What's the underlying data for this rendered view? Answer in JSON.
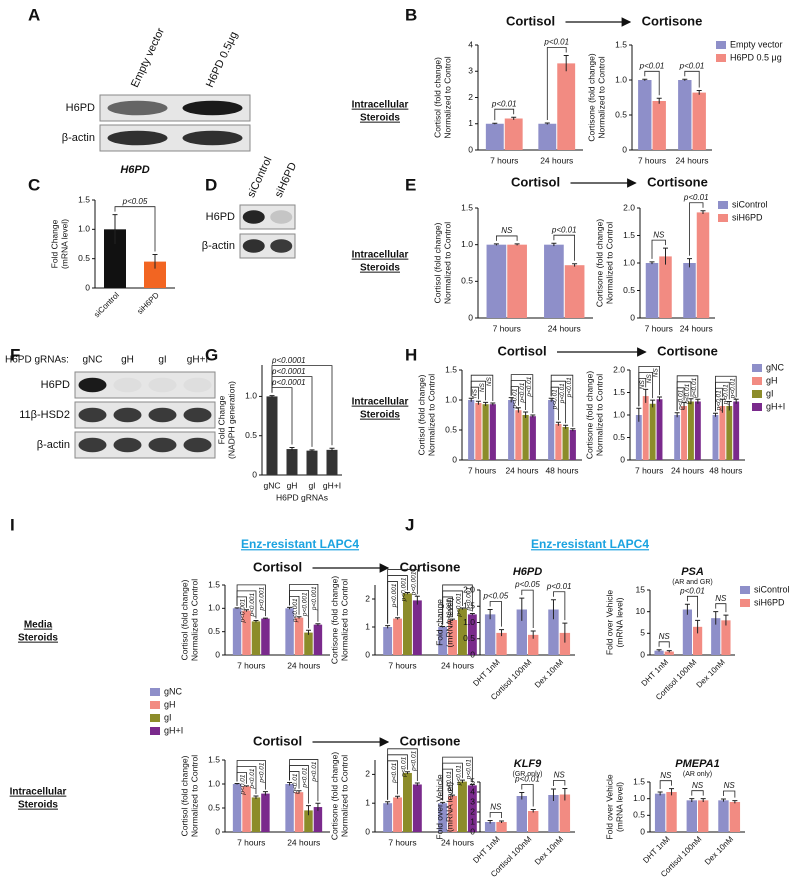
{
  "panels": [
    "A",
    "B",
    "C",
    "D",
    "E",
    "F",
    "G",
    "H",
    "I",
    "J"
  ],
  "side_labels": [
    [
      "Intracellular",
      "Steroids"
    ],
    [
      "Intracellular",
      "Steroids"
    ],
    [
      "Intracellular",
      "Steroids"
    ],
    [
      "Media",
      "Steroids"
    ],
    [
      "Intracellular",
      "Steroids"
    ]
  ],
  "cell_line": [
    "Enz-resistant LAPC4",
    "Enz-resistant LAPC4"
  ],
  "blots": [
    {
      "columns": [
        "Empty vector",
        "H6PD 0.5μg"
      ],
      "rows": [
        "H6PD",
        "β-actin"
      ]
    },
    {
      "columns": [
        "siControl",
        "siH6PD"
      ],
      "rows": [
        "H6PD",
        "β-actin"
      ]
    },
    {
      "lead": "H6PD gRNAs:",
      "columns": [
        "gNC",
        "gH",
        "gI",
        "gH+I"
      ],
      "rows": [
        "H6PD",
        "11β-HSD2",
        "β-actin"
      ]
    }
  ],
  "chart_data": [
    {
      "type": "bar",
      "title": "Cortisol",
      "ylabel": [
        "Cortisol (fold change)",
        "Normalized to Control"
      ],
      "categories": [
        "7 hours",
        "24 hours"
      ],
      "series": [
        {
          "color": "#8e8fc9",
          "values": [
            1,
            1
          ],
          "errors": [
            0.02,
            0.03
          ]
        },
        {
          "color": "#f28b82",
          "values": [
            1.2,
            3.3
          ],
          "errors": [
            0.05,
            0.3
          ]
        }
      ],
      "ylim": [
        0,
        4
      ],
      "yticks": [
        0,
        1,
        2,
        3,
        4
      ],
      "annotations": [
        "p<0.01",
        "p<0.01"
      ]
    },
    {
      "type": "bar",
      "title": "Cortisone",
      "ylabel": [
        "Cortisone (fold change)",
        "Normalized to Control"
      ],
      "categories": [
        "7 hours",
        "24 hours"
      ],
      "series": [
        {
          "name": "Empty vector",
          "color": "#8e8fc9",
          "values": [
            1,
            1
          ],
          "errors": [
            0.01,
            0.01
          ]
        },
        {
          "name": "H6PD 0.5 μg",
          "color": "#f28b82",
          "values": [
            0.7,
            0.82
          ],
          "errors": [
            0.04,
            0.03
          ]
        }
      ],
      "ylim": [
        0,
        1.5
      ],
      "yticks": [
        0,
        0.5,
        {
          "value": 1,
          "label": "1.0"
        },
        1.5
      ],
      "annotations": [
        "p<0.01",
        "p<0.01"
      ],
      "legend": "right"
    },
    {
      "type": "bar",
      "title": "H6PD",
      "ylabel": [
        "Fold Change",
        "(mRNA level)"
      ],
      "categories": [
        "siControl",
        "siH6PD"
      ],
      "values": [
        1,
        0.45
      ],
      "errors": [
        0.25,
        0.12
      ],
      "colors": [
        "#111111",
        "#f26522"
      ],
      "ylim": [
        0,
        1.5
      ],
      "yticks": [
        0,
        0.5,
        {
          "value": 1,
          "label": "1.0"
        },
        1.5
      ],
      "annotations": [
        "p<0.05"
      ]
    },
    {
      "type": "bar",
      "title": "Cortisol",
      "ylabel": [
        "Cortisol (fold change)",
        "Normalized to Control"
      ],
      "categories": [
        "7 hours",
        "24 hours"
      ],
      "series": [
        {
          "color": "#8e8fc9",
          "values": [
            1,
            1
          ],
          "errors": [
            0.01,
            0.02
          ]
        },
        {
          "color": "#f28b82",
          "values": [
            1,
            0.72
          ],
          "errors": [
            0.01,
            0.02
          ]
        }
      ],
      "ylim": [
        0,
        1.5
      ],
      "yticks": [
        0,
        0.5,
        {
          "value": 1,
          "label": "1.0"
        },
        1.5
      ],
      "annotations": [
        "NS",
        "p<0.01"
      ]
    },
    {
      "type": "bar",
      "title": "Cortisone",
      "ylabel": [
        "Cortisone (fold change)",
        "Normalized to Control"
      ],
      "categories": [
        "7 hours",
        "24 hours"
      ],
      "series": [
        {
          "name": "siControl",
          "color": "#8e8fc9",
          "values": [
            1,
            1
          ],
          "errors": [
            0.02,
            0.08
          ]
        },
        {
          "name": "siH6PD",
          "color": "#f28b82",
          "values": [
            1.12,
            1.92
          ],
          "errors": [
            0.15,
            0.03
          ]
        }
      ],
      "ylim": [
        0,
        2
      ],
      "yticks": [
        0,
        0.5,
        {
          "value": 1,
          "label": "1.0"
        },
        1.5,
        {
          "value": 2,
          "label": "2.0"
        }
      ],
      "annotations": [
        "NS",
        "p<0.01"
      ],
      "legend": "right"
    },
    {
      "type": "bar",
      "ylabel": [
        "Fold Change",
        "(NADPH generation)"
      ],
      "xlabel": "H6PD gRNAs",
      "categories": [
        "gNC",
        "gH",
        "gI",
        "gH+I"
      ],
      "values": [
        1,
        0.33,
        0.31,
        0.32
      ],
      "errors": [
        0.01,
        0.02,
        0.01,
        0.02
      ],
      "colors": [
        "#333333",
        "#333333",
        "#333333",
        "#333333"
      ],
      "ylim": [
        0,
        1.4
      ],
      "yticks": [
        0,
        0.5,
        {
          "value": 1,
          "label": "1.0"
        }
      ],
      "annotations": [
        "p<0.0001",
        "p<0.0001",
        "p<0.0001"
      ]
    },
    {
      "type": "bar",
      "title": "Cortisol",
      "ylabel": [
        "Cortisol (fold change)",
        "Normalized to Control"
      ],
      "categories": [
        "7 hours",
        "24 hours",
        "48 hours"
      ],
      "series": [
        {
          "color": "#8e8fc9",
          "values": [
            1,
            1,
            1
          ],
          "errors": [
            0.03,
            0.04,
            0.03
          ]
        },
        {
          "color": "#f28b82",
          "values": [
            0.95,
            0.83,
            0.6
          ],
          "errors": [
            0.03,
            0.04,
            0.03
          ]
        },
        {
          "color": "#8c8c2a",
          "values": [
            0.93,
            0.75,
            0.55
          ],
          "errors": [
            0.03,
            0.05,
            0.03
          ]
        },
        {
          "color": "#7a2a8c",
          "values": [
            0.93,
            0.73,
            0.5
          ],
          "errors": [
            0.02,
            0.02,
            0.02
          ]
        }
      ],
      "ylim": [
        0,
        1.5
      ],
      "yticks": [
        0,
        0.5,
        {
          "value": 1,
          "label": "1.0"
        },
        1.5
      ],
      "annotations": [
        [
          "NS",
          "NS",
          "NS"
        ],
        [
          "p<0.01",
          "p<0.01",
          "p<0.01"
        ],
        [
          "p<0.01",
          "p<0.01",
          "p<0.01"
        ]
      ]
    },
    {
      "type": "bar",
      "title": "Cortisone",
      "ylabel": [
        "Cortisone (fold change)",
        "Normalized to Control"
      ],
      "categories": [
        "7 hours",
        "24 hours",
        "48 hours"
      ],
      "series": [
        {
          "name": "gNC",
          "color": "#8e8fc9",
          "values": [
            1,
            1,
            1
          ],
          "errors": [
            0.15,
            0.05,
            0.04
          ]
        },
        {
          "name": "gH",
          "color": "#f28b82",
          "values": [
            1.42,
            1.2,
            1.2
          ],
          "errors": [
            0.15,
            0.08,
            0.15
          ]
        },
        {
          "name": "gI",
          "color": "#8c8c2a",
          "values": [
            1.25,
            1.3,
            1.2
          ],
          "errors": [
            0.08,
            0.06,
            0.1
          ]
        },
        {
          "name": "gH+I",
          "color": "#7a2a8c",
          "values": [
            1.35,
            1.3,
            1.3
          ],
          "errors": [
            0.05,
            0.05,
            0.05
          ]
        }
      ],
      "ylim": [
        0,
        2
      ],
      "yticks": [
        0,
        0.5,
        {
          "value": 1,
          "label": "1.0"
        },
        1.5,
        {
          "value": 2,
          "label": "2.0"
        }
      ],
      "annotations": [
        [
          "NS",
          "NS",
          "NS"
        ],
        [
          "p<0.01",
          "p<0.01",
          "p<0.01"
        ],
        [
          "p<0.01",
          "p<0.01",
          "p<0.01"
        ]
      ],
      "legend": "right"
    },
    {
      "type": "bar",
      "title": "Cortisol",
      "ylabel": [
        "Cortisol (fold change)",
        "Normalized to Control"
      ],
      "categories": [
        "7 hours",
        "24 hours"
      ],
      "series": [
        {
          "name": "gNC",
          "color": "#8e8fc9",
          "values": [
            1,
            1
          ],
          "errors": [
            0.01,
            0.02
          ]
        },
        {
          "name": "gH",
          "color": "#f28b82",
          "values": [
            0.95,
            0.8
          ],
          "errors": [
            0.02,
            0.02
          ]
        },
        {
          "name": "gI",
          "color": "#8c8c2a",
          "values": [
            0.72,
            0.48
          ],
          "errors": [
            0.02,
            0.05
          ]
        },
        {
          "name": "gH+I",
          "color": "#7a2a8c",
          "values": [
            0.78,
            0.65
          ],
          "errors": [
            0.01,
            0.02
          ]
        }
      ],
      "ylim": [
        0,
        1.5
      ],
      "yticks": [
        0,
        0.5,
        {
          "value": 1,
          "label": "1.0"
        },
        1.5
      ],
      "annotations": [
        [
          "p<0.001",
          "p<0.001",
          "p<0.001"
        ],
        [
          "p<0.001",
          "p<0.001",
          "p<0.001"
        ]
      ],
      "legend": "left"
    },
    {
      "type": "bar",
      "title": "Cortisone",
      "ylabel": [
        "Cortisone (fold change)",
        "Normalized to Control"
      ],
      "categories": [
        "7 hours",
        "24 hours"
      ],
      "series": [
        {
          "color": "#8e8fc9",
          "values": [
            1,
            1
          ],
          "errors": [
            0.05,
            0.02
          ]
        },
        {
          "color": "#f28b82",
          "values": [
            1.3,
            1.25
          ],
          "errors": [
            0.03,
            0.03
          ]
        },
        {
          "color": "#8c8c2a",
          "values": [
            2.2,
            1.65
          ],
          "errors": [
            0.03,
            0.03
          ]
        },
        {
          "color": "#7a2a8c",
          "values": [
            1.95,
            1.45
          ],
          "errors": [
            0.15,
            0.03
          ]
        }
      ],
      "ylim": [
        0,
        2.5
      ],
      "yticks": [
        0,
        1,
        2
      ],
      "annotations": [
        [
          "p<0.001",
          "p<0.001",
          "p<0.001"
        ],
        [
          "p<0.001",
          "p<0.001",
          "p<0.001"
        ]
      ]
    },
    {
      "type": "bar",
      "title": "Cortisol",
      "ylabel": [
        "Cortisol (fold change)",
        "Normalized to Control"
      ],
      "categories": [
        "7 hours",
        "24 hours"
      ],
      "series": [
        {
          "color": "#8e8fc9",
          "values": [
            1,
            1
          ],
          "errors": [
            0.01,
            0.03
          ]
        },
        {
          "color": "#f28b82",
          "values": [
            0.95,
            0.83
          ],
          "errors": [
            0.01,
            0.03
          ]
        },
        {
          "color": "#8c8c2a",
          "values": [
            0.72,
            0.45
          ],
          "errors": [
            0.03,
            0.1
          ]
        },
        {
          "color": "#7a2a8c",
          "values": [
            0.8,
            0.52
          ],
          "errors": [
            0.04,
            0.08
          ]
        }
      ],
      "ylim": [
        0,
        1.5
      ],
      "yticks": [
        0,
        0.5,
        {
          "value": 1,
          "label": "1.0"
        },
        1.5
      ],
      "annotations": [
        [
          "p<0.01",
          "p<0.01",
          "p<0.01"
        ],
        [
          "p<0.01",
          "p<0.01",
          "p<0.01"
        ]
      ]
    },
    {
      "type": "bar",
      "title": "Cortisone",
      "ylabel": [
        "Cortisone (fold change)",
        "Normalized to Control"
      ],
      "categories": [
        "7 hours",
        "24 hours"
      ],
      "series": [
        {
          "color": "#8e8fc9",
          "values": [
            1,
            1
          ],
          "errors": [
            0.05,
            0.03
          ]
        },
        {
          "color": "#f28b82",
          "values": [
            1.2,
            1.25
          ],
          "errors": [
            0.04,
            0.03
          ]
        },
        {
          "color": "#8c8c2a",
          "values": [
            2.05,
            1.75
          ],
          "errors": [
            0.04,
            0.05
          ]
        },
        {
          "color": "#7a2a8c",
          "values": [
            1.65,
            1.62
          ],
          "errors": [
            0.05,
            0.03
          ]
        }
      ],
      "ylim": [
        0,
        2.5
      ],
      "yticks": [
        0,
        1,
        2
      ],
      "annotations": [
        [
          "p<0.01",
          "p<0.01",
          "p<0.01"
        ],
        [
          "p<0.01",
          "p<0.01",
          "p<0.01"
        ]
      ]
    },
    {
      "type": "bar",
      "title": "H6PD",
      "ylabel": [
        "Fold change",
        "(mRNA level)"
      ],
      "categories": [
        "DHT 1nM",
        "Cortisol 100nM",
        "Dex 10nM"
      ],
      "series": [
        {
          "color": "#8e8fc9",
          "values": [
            1.25,
            1.4,
            1.4
          ],
          "errors": [
            0.15,
            0.35,
            0.3
          ]
        },
        {
          "color": "#f28b82",
          "values": [
            0.68,
            0.62,
            0.68
          ],
          "errors": [
            0.1,
            0.12,
            0.3
          ]
        }
      ],
      "ylim": [
        0,
        2
      ],
      "yticks": [
        0,
        0.5,
        {
          "value": 1,
          "label": "1.0"
        },
        1.5,
        {
          "value": 2,
          "label": "2.0"
        }
      ],
      "annotations": [
        "p<0.05",
        "p<0.05",
        "p<0.01"
      ]
    },
    {
      "type": "bar",
      "title": "PSA",
      "subtitle": "(AR and GR)",
      "ylabel": [
        "Fold over Vehicle",
        "(mRNA level)"
      ],
      "categories": [
        "DHT 1nM",
        "Cortisol 100nM",
        "Dex 10nM"
      ],
      "series": [
        {
          "name": "siControl",
          "color": "#8e8fc9",
          "values": [
            1,
            10.5,
            8.5
          ],
          "errors": [
            0.2,
            1.2,
            1.5
          ]
        },
        {
          "name": "siH6PD",
          "color": "#f28b82",
          "values": [
            0.8,
            6.5,
            8
          ],
          "errors": [
            0.2,
            1.5,
            1.2
          ]
        }
      ],
      "ylim": [
        0,
        15
      ],
      "yticks": [
        0,
        5,
        10,
        15
      ],
      "annotations": [
        "NS",
        "p<0.01",
        "NS"
      ],
      "legend": "right"
    },
    {
      "type": "bar",
      "title": "KLF9",
      "subtitle": "(GR only)",
      "ylabel": [
        "Fold over Vehicle",
        "(mRNA level)"
      ],
      "categories": [
        "DHT 1nM",
        "Cortisol 100nM",
        "Dex 10nM"
      ],
      "series": [
        {
          "color": "#8e8fc9",
          "values": [
            1,
            3.6,
            3.7
          ],
          "errors": [
            0.15,
            0.35,
            0.6
          ]
        },
        {
          "color": "#f28b82",
          "values": [
            1,
            2.1,
            3.75
          ],
          "errors": [
            0.1,
            0.15,
            0.6
          ]
        }
      ],
      "ylim": [
        0,
        5
      ],
      "yticks": [
        0,
        1,
        2,
        3,
        4,
        5
      ],
      "annotations": [
        "NS",
        "p<0.01",
        "NS"
      ]
    },
    {
      "type": "bar",
      "title": "PMEPA1",
      "subtitle": "(AR only)",
      "ylabel": [
        "Fold over Vehicle",
        "(mRNA level)"
      ],
      "categories": [
        "DHT 1nM",
        "Cortisol 100nM",
        "Dex 10nM"
      ],
      "series": [
        {
          "color": "#8e8fc9",
          "values": [
            1.15,
            0.95,
            0.95
          ],
          "errors": [
            0.05,
            0.05,
            0.04
          ]
        },
        {
          "color": "#f28b82",
          "values": [
            1.2,
            0.95,
            0.9
          ],
          "errors": [
            0.1,
            0.05,
            0.04
          ]
        }
      ],
      "ylim": [
        0,
        1.5
      ],
      "yticks": [
        0,
        0.5,
        {
          "value": 1,
          "label": "1.0"
        },
        1.5
      ],
      "annotations": [
        "NS",
        "NS",
        "NS"
      ]
    }
  ]
}
